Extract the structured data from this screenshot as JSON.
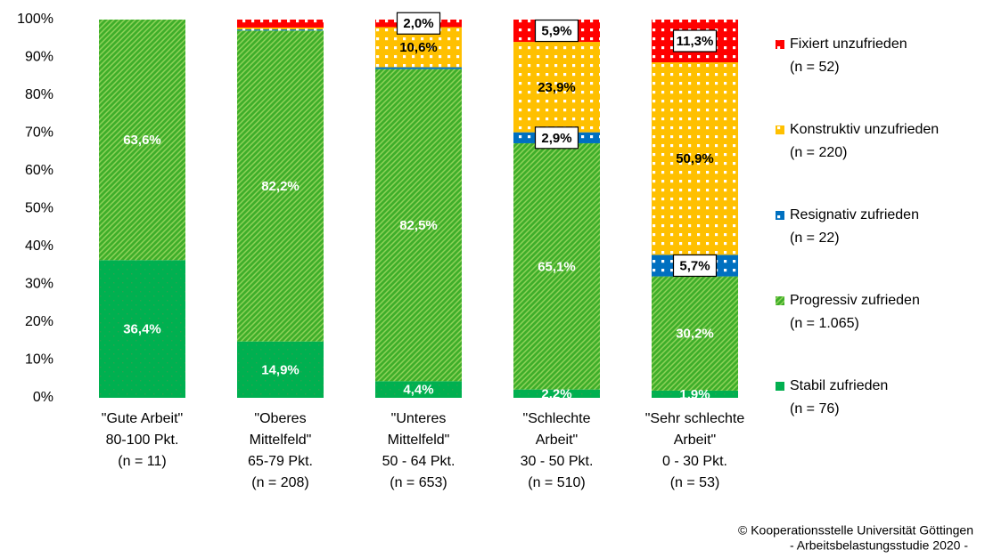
{
  "chart_data": {
    "type": "stacked_bar",
    "categories": [
      [
        "\"Gute Arbeit\"",
        "80-100 Pkt.",
        "(n = 11)"
      ],
      [
        "\"Oberes",
        "Mittelfeld\"",
        "65-79 Pkt.",
        "(n = 208)"
      ],
      [
        "\"Unteres",
        "Mittelfeld\"",
        "50 - 64 Pkt.",
        "(n = 653)"
      ],
      [
        "\"Schlechte",
        "Arbeit\"",
        "30 - 50 Pkt.",
        "(n = 510)"
      ],
      [
        "\"Sehr schlechte",
        "Arbeit\"",
        "0 - 30 Pkt.",
        "(n = 53)"
      ]
    ],
    "series": [
      {
        "name": "Stabil zufrieden",
        "n_label": "(n = 76)",
        "color": "#00b050",
        "pattern": "dots",
        "label_color": "#ffffff",
        "label_style": "plain",
        "values": [
          36.4,
          14.9,
          4.4,
          2.2,
          1.9
        ],
        "value_labels": [
          "36,4%",
          "14,9%",
          "4,4%",
          "2,2%",
          "1,9%"
        ]
      },
      {
        "name": "Progressiv zufrieden",
        "n_label": "(n = 1.065)",
        "color": "#3fae2a",
        "pattern": "hatch",
        "label_color": "#ffffff",
        "label_style": "plain",
        "values": [
          63.6,
          82.2,
          82.5,
          65.1,
          30.2
        ],
        "value_labels": [
          "63,6%",
          "82,2%",
          "82,5%",
          "65,1%",
          "30,2%"
        ]
      },
      {
        "name": "Resignativ zufrieden",
        "n_label": "(n = 22)",
        "color": "#0070c0",
        "pattern": "dots",
        "label_color": "#000000",
        "label_style": "boxed",
        "values": [
          0,
          0.3,
          0.5,
          2.9,
          5.7
        ],
        "value_labels": [
          null,
          null,
          null,
          "2,9%",
          "5,7%"
        ]
      },
      {
        "name": "Konstruktiv unzufrieden",
        "n_label": "(n = 220)",
        "color": "#ffc000",
        "pattern": "dots",
        "label_color": "#000000",
        "label_style": "plain",
        "values": [
          0,
          0.5,
          10.6,
          23.9,
          50.9
        ],
        "value_labels": [
          null,
          null,
          "10,6%",
          "23,9%",
          "50,9%"
        ]
      },
      {
        "name": "Fixiert unzufrieden",
        "n_label": "(n = 52)",
        "color": "#ff0000",
        "pattern": "dots",
        "label_color": "#000000",
        "label_style": "boxed",
        "values": [
          0,
          2.1,
          2.0,
          5.9,
          11.3
        ],
        "value_labels": [
          null,
          null,
          "2,0%",
          "5,9%",
          "11,3%"
        ]
      }
    ],
    "ylim": [
      0,
      100
    ],
    "yticks": [
      {
        "value": 0,
        "label": "0%"
      },
      {
        "value": 10,
        "label": "10%"
      },
      {
        "value": 20,
        "label": "20%"
      },
      {
        "value": 30,
        "label": "30%"
      },
      {
        "value": 40,
        "label": "40%"
      },
      {
        "value": 50,
        "label": "50%"
      },
      {
        "value": 60,
        "label": "60%"
      },
      {
        "value": 70,
        "label": "70%"
      },
      {
        "value": 80,
        "label": "80%"
      },
      {
        "value": 90,
        "label": "90%"
      },
      {
        "value": 100,
        "label": "100%"
      }
    ],
    "grid": false,
    "legend": "right",
    "footer": [
      "© Kooperationsstelle Universität Göttingen",
      "- Arbeitsbelastungsstudie 2020 -"
    ]
  }
}
